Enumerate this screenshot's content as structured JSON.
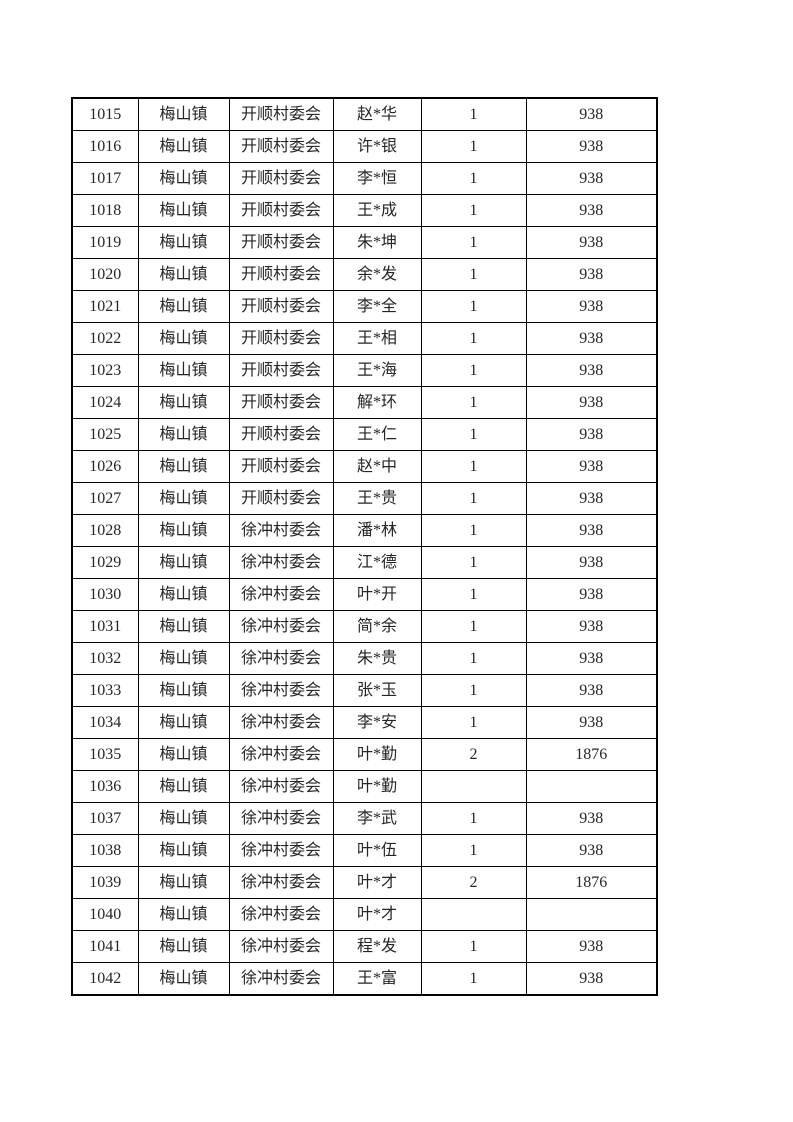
{
  "page": {
    "background_color": "#ffffff",
    "text_color": "#262626",
    "grid_color": "#000000"
  },
  "table": {
    "rows": [
      {
        "serial": "1015",
        "town": "梅山镇",
        "village": "开顺村委会",
        "name": "赵*华",
        "count": "1",
        "amount": "938"
      },
      {
        "serial": "1016",
        "town": "梅山镇",
        "village": "开顺村委会",
        "name": "许*银",
        "count": "1",
        "amount": "938"
      },
      {
        "serial": "1017",
        "town": "梅山镇",
        "village": "开顺村委会",
        "name": "李*恒",
        "count": "1",
        "amount": "938"
      },
      {
        "serial": "1018",
        "town": "梅山镇",
        "village": "开顺村委会",
        "name": "王*成",
        "count": "1",
        "amount": "938"
      },
      {
        "serial": "1019",
        "town": "梅山镇",
        "village": "开顺村委会",
        "name": "朱*坤",
        "count": "1",
        "amount": "938"
      },
      {
        "serial": "1020",
        "town": "梅山镇",
        "village": "开顺村委会",
        "name": "余*发",
        "count": "1",
        "amount": "938"
      },
      {
        "serial": "1021",
        "town": "梅山镇",
        "village": "开顺村委会",
        "name": "李*全",
        "count": "1",
        "amount": "938"
      },
      {
        "serial": "1022",
        "town": "梅山镇",
        "village": "开顺村委会",
        "name": "王*相",
        "count": "1",
        "amount": "938"
      },
      {
        "serial": "1023",
        "town": "梅山镇",
        "village": "开顺村委会",
        "name": "王*海",
        "count": "1",
        "amount": "938"
      },
      {
        "serial": "1024",
        "town": "梅山镇",
        "village": "开顺村委会",
        "name": "解*环",
        "count": "1",
        "amount": "938"
      },
      {
        "serial": "1025",
        "town": "梅山镇",
        "village": "开顺村委会",
        "name": "王*仁",
        "count": "1",
        "amount": "938"
      },
      {
        "serial": "1026",
        "town": "梅山镇",
        "village": "开顺村委会",
        "name": "赵*中",
        "count": "1",
        "amount": "938"
      },
      {
        "serial": "1027",
        "town": "梅山镇",
        "village": "开顺村委会",
        "name": "王*贵",
        "count": "1",
        "amount": "938"
      },
      {
        "serial": "1028",
        "town": "梅山镇",
        "village": "徐冲村委会",
        "name": "潘*林",
        "count": "1",
        "amount": "938"
      },
      {
        "serial": "1029",
        "town": "梅山镇",
        "village": "徐冲村委会",
        "name": "江*德",
        "count": "1",
        "amount": "938"
      },
      {
        "serial": "1030",
        "town": "梅山镇",
        "village": "徐冲村委会",
        "name": "叶*开",
        "count": "1",
        "amount": "938"
      },
      {
        "serial": "1031",
        "town": "梅山镇",
        "village": "徐冲村委会",
        "name": "简*余",
        "count": "1",
        "amount": "938"
      },
      {
        "serial": "1032",
        "town": "梅山镇",
        "village": "徐冲村委会",
        "name": "朱*贵",
        "count": "1",
        "amount": "938"
      },
      {
        "serial": "1033",
        "town": "梅山镇",
        "village": "徐冲村委会",
        "name": "张*玉",
        "count": "1",
        "amount": "938"
      },
      {
        "serial": "1034",
        "town": "梅山镇",
        "village": "徐冲村委会",
        "name": "李*安",
        "count": "1",
        "amount": "938"
      },
      {
        "serial": "1035",
        "town": "梅山镇",
        "village": "徐冲村委会",
        "name": "叶*勤",
        "count": "2",
        "amount": "1876"
      },
      {
        "serial": "1036",
        "town": "梅山镇",
        "village": "徐冲村委会",
        "name": "叶*勤",
        "count": "",
        "amount": ""
      },
      {
        "serial": "1037",
        "town": "梅山镇",
        "village": "徐冲村委会",
        "name": "李*武",
        "count": "1",
        "amount": "938"
      },
      {
        "serial": "1038",
        "town": "梅山镇",
        "village": "徐冲村委会",
        "name": "叶*伍",
        "count": "1",
        "amount": "938"
      },
      {
        "serial": "1039",
        "town": "梅山镇",
        "village": "徐冲村委会",
        "name": "叶*才",
        "count": "2",
        "amount": "1876"
      },
      {
        "serial": "1040",
        "town": "梅山镇",
        "village": "徐冲村委会",
        "name": "叶*才",
        "count": "",
        "amount": ""
      },
      {
        "serial": "1041",
        "town": "梅山镇",
        "village": "徐冲村委会",
        "name": "程*发",
        "count": "1",
        "amount": "938"
      },
      {
        "serial": "1042",
        "town": "梅山镇",
        "village": "徐冲村委会",
        "name": "王*富",
        "count": "1",
        "amount": "938"
      }
    ]
  }
}
